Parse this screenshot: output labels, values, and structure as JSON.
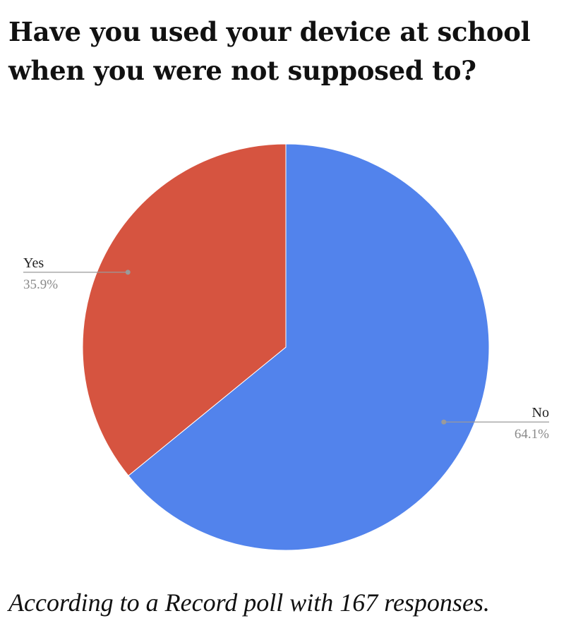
{
  "title": "Have you used your device at school when you were not supposed to?",
  "caption": "According to a Record poll with 167 responses.",
  "chart_data": {
    "type": "pie",
    "title": "Have you used your device at school when you were not supposed to?",
    "slices": [
      {
        "label": "No",
        "value": 64.1,
        "percent_label": "64.1%",
        "color": "#5283EC"
      },
      {
        "label": "Yes",
        "value": 35.9,
        "percent_label": "35.9%",
        "color": "#D65440"
      }
    ],
    "start_angle": "12 o'clock",
    "direction": "clockwise",
    "legend": "none (leader-line labels)"
  }
}
